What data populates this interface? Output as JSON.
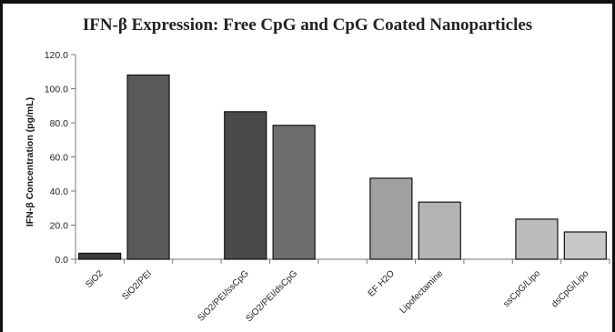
{
  "chart_data": {
    "type": "bar",
    "title": "IFN-β Expression: Free CpG and CpG Coated Nanoparticles",
    "ylabel": "IFN-β Concentration (pg/mL)",
    "xlabel": "",
    "ylim": [
      0,
      120
    ],
    "yticks": [
      "0.0",
      "20.0",
      "40.0",
      "60.0",
      "80.0",
      "100.0",
      "120.0"
    ],
    "grid": false,
    "categories": [
      "SiO2",
      "SiO2/PEI",
      "SiO2/PEI/ssCpG",
      "SiO2/PEI/dsCpG",
      "EF H2O",
      "Lipofectamine",
      "ssCpG/Lipo",
      "dsCpG/Lipo"
    ],
    "values": [
      3.5,
      108,
      86.5,
      78.5,
      47.5,
      33.5,
      23.5,
      16
    ],
    "groups": [
      [
        0,
        1
      ],
      [
        2,
        3
      ],
      [
        4,
        5
      ],
      [
        6,
        7
      ]
    ],
    "bar_colors": [
      "#3c3c3c",
      "#5a5a5c",
      "#4a4a4c",
      "#6e6e70",
      "#a0a0a2",
      "#b4b4b6",
      "#bcbcbe",
      "#c8c8ca"
    ]
  }
}
